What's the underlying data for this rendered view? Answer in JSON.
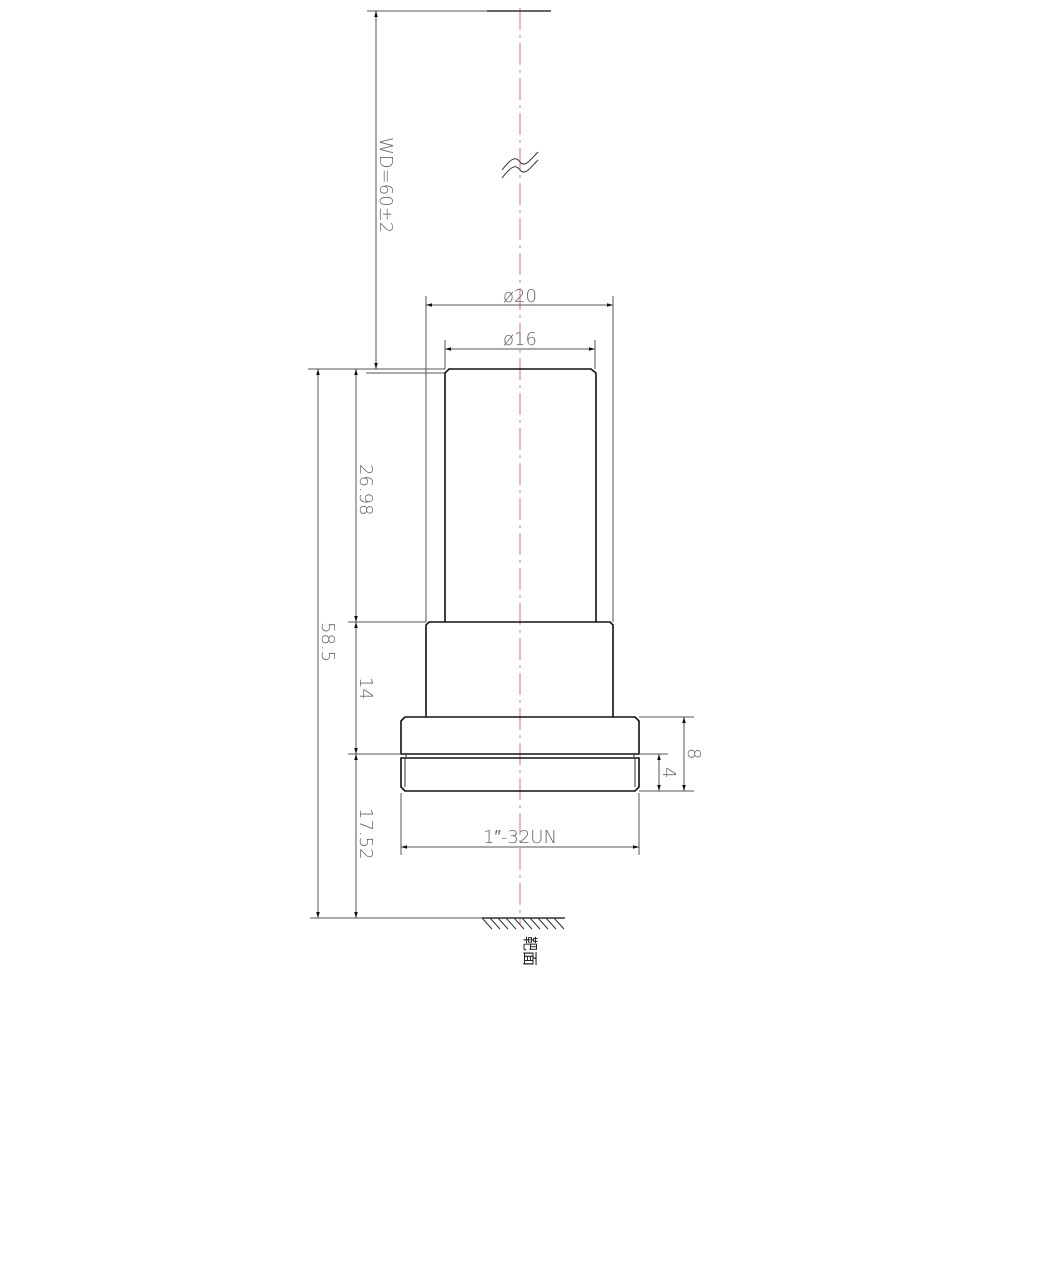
{
  "drawing": {
    "working_distance": "WD=60±2",
    "outer_diameter": "ø20",
    "inner_diameter": "ø16",
    "total_length": "58.5",
    "tube_length": "26.98",
    "middle_length": "14",
    "flange_to_target": "17.52",
    "flange_height": "8",
    "thread_height": "4",
    "thread_spec": "1″-32UN",
    "target_surface": "靶面",
    "colors": {
      "part": "#111111",
      "dimension": "#555555",
      "centerline": "#e07070"
    }
  }
}
